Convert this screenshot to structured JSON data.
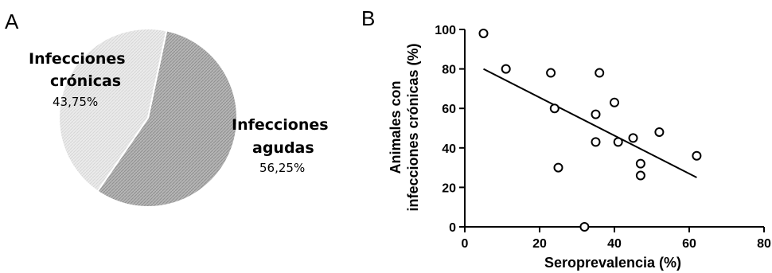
{
  "panels": {
    "a_letter": "A",
    "b_letter": "B"
  },
  "chart_data": [
    {
      "type": "pie",
      "slices": [
        {
          "label_line1": "Infecciones",
          "label_line2": "agudas",
          "value": 56.25,
          "percent_label": "56,25%",
          "color": "#a9a9a9"
        },
        {
          "label_line1": "Infecciones",
          "label_line2": "crónicas",
          "value": 43.75,
          "percent_label": "43,75%",
          "color": "#e6e6e6"
        }
      ]
    },
    {
      "type": "scatter",
      "xlabel": "Seroprevalencia (%)",
      "ylabel_line1": "Animales con",
      "ylabel_line2": "infecciones crónicas (%)",
      "xlim": [
        0,
        80
      ],
      "ylim": [
        0,
        100
      ],
      "xticks": [
        0,
        20,
        40,
        60,
        80
      ],
      "yticks": [
        0,
        20,
        40,
        60,
        80,
        100
      ],
      "points": [
        {
          "x": 5,
          "y": 98
        },
        {
          "x": 11,
          "y": 80
        },
        {
          "x": 23,
          "y": 78
        },
        {
          "x": 24,
          "y": 60
        },
        {
          "x": 25,
          "y": 30
        },
        {
          "x": 32,
          "y": 0
        },
        {
          "x": 35,
          "y": 57
        },
        {
          "x": 35,
          "y": 43
        },
        {
          "x": 36,
          "y": 78
        },
        {
          "x": 40,
          "y": 63
        },
        {
          "x": 41,
          "y": 43
        },
        {
          "x": 45,
          "y": 45
        },
        {
          "x": 47,
          "y": 32
        },
        {
          "x": 47,
          "y": 26
        },
        {
          "x": 52,
          "y": 48
        },
        {
          "x": 62,
          "y": 36
        }
      ],
      "trendline": {
        "x": [
          5,
          62
        ],
        "y": [
          80,
          25
        ]
      }
    }
  ]
}
